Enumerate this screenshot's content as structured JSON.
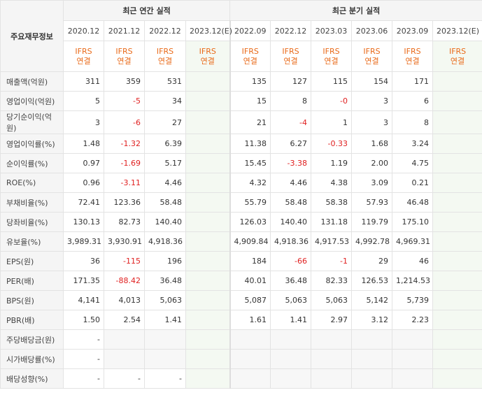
{
  "header": {
    "row_label": "주요재무정보",
    "annual_title": "최근 연간 실적",
    "quarter_title": "최근 분기 실적",
    "annual_periods": [
      "2020.12",
      "2021.12",
      "2022.12",
      "2023.12(E)"
    ],
    "quarter_periods": [
      "2022.09",
      "2022.12",
      "2023.03",
      "2023.06",
      "2023.09",
      "2023.12(E)"
    ],
    "ifrs_top": "IFRS",
    "ifrs_bottom": "연결"
  },
  "rows": [
    {
      "label": "매출액(억원)",
      "values": [
        "311",
        "359",
        "531",
        "",
        "135",
        "127",
        "115",
        "154",
        "171",
        ""
      ]
    },
    {
      "label": "영업이익(억원)",
      "values": [
        "5",
        "-5",
        "34",
        "",
        "15",
        "8",
        "-0",
        "3",
        "6",
        ""
      ]
    },
    {
      "label": "당기순이익(억원)",
      "values": [
        "3",
        "-6",
        "27",
        "",
        "21",
        "-4",
        "1",
        "3",
        "8",
        ""
      ]
    },
    {
      "label": "영업이익률(%)",
      "values": [
        "1.48",
        "-1.32",
        "6.39",
        "",
        "11.38",
        "6.27",
        "-0.33",
        "1.68",
        "3.24",
        ""
      ]
    },
    {
      "label": "순이익률(%)",
      "values": [
        "0.97",
        "-1.69",
        "5.17",
        "",
        "15.45",
        "-3.38",
        "1.19",
        "2.00",
        "4.75",
        ""
      ]
    },
    {
      "label": "ROE(%)",
      "values": [
        "0.96",
        "-3.11",
        "4.46",
        "",
        "4.32",
        "4.46",
        "4.38",
        "3.09",
        "0.21",
        ""
      ]
    },
    {
      "label": "부채비율(%)",
      "values": [
        "72.41",
        "123.36",
        "58.48",
        "",
        "55.79",
        "58.48",
        "58.38",
        "57.93",
        "46.48",
        ""
      ]
    },
    {
      "label": "당좌비율(%)",
      "values": [
        "130.13",
        "82.73",
        "140.40",
        "",
        "126.03",
        "140.40",
        "131.18",
        "119.79",
        "175.10",
        ""
      ]
    },
    {
      "label": "유보율(%)",
      "values": [
        "3,989.31",
        "3,930.91",
        "4,918.36",
        "",
        "4,909.84",
        "4,918.36",
        "4,917.53",
        "4,992.78",
        "4,969.31",
        ""
      ]
    },
    {
      "label": "EPS(원)",
      "values": [
        "36",
        "-115",
        "196",
        "",
        "184",
        "-66",
        "-1",
        "29",
        "46",
        ""
      ]
    },
    {
      "label": "PER(배)",
      "values": [
        "171.35",
        "-88.42",
        "36.48",
        "",
        "40.01",
        "36.48",
        "82.33",
        "126.53",
        "1,214.53",
        ""
      ]
    },
    {
      "label": "BPS(원)",
      "values": [
        "4,141",
        "4,013",
        "5,063",
        "",
        "5,087",
        "5,063",
        "5,063",
        "5,142",
        "5,739",
        ""
      ]
    },
    {
      "label": "PBR(배)",
      "values": [
        "1.50",
        "2.54",
        "1.41",
        "",
        "1.61",
        "1.41",
        "2.97",
        "3.12",
        "2.23",
        ""
      ]
    },
    {
      "label": "주당배당금(원)",
      "values": [
        "-",
        "",
        "",
        "",
        "",
        "",
        "",
        "",
        "",
        ""
      ]
    },
    {
      "label": "시가배당률(%)",
      "values": [
        "-",
        "",
        "",
        "",
        "",
        "",
        "",
        "",
        "",
        ""
      ]
    },
    {
      "label": "배당성향(%)",
      "values": [
        "-",
        "-",
        "-",
        "",
        "",
        "",
        "",
        "",
        "",
        ""
      ]
    }
  ],
  "colors": {
    "negative": "#e02020",
    "ifrs": "#e96a19",
    "estimate_bg": "#f4f9f2"
  }
}
